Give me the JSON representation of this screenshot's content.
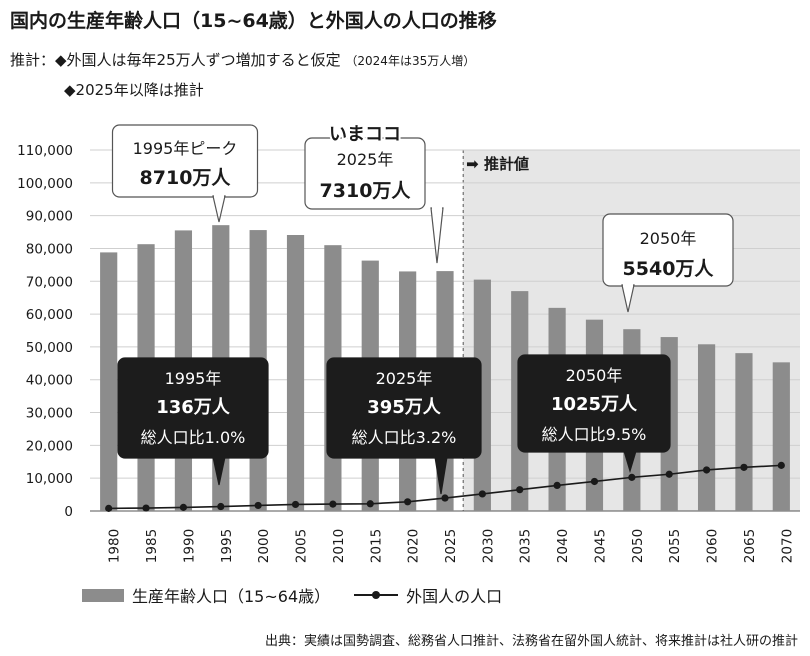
{
  "title": "国内の生産年齢人口（15~64歳）と外国人の人口の推移",
  "notes": {
    "line1_prefix": "推計：◆外国人は毎年25万人ずつ増加すると仮定",
    "line1_small": "（2024年は35万人増）",
    "line2": "◆2025年以降は推計"
  },
  "estimate_label": "推計値",
  "source": "出典：実績は国勢調査、総務省人口推計、法務省在留外国人統計、将来推計は社人研の推計",
  "legend": {
    "bar": "生産年齢人口（15~64歳）",
    "line": "外国人の人口"
  },
  "callouts": {
    "peak": {
      "line1": "1995年ピーク",
      "line2": "8710万人"
    },
    "now": {
      "header": "いまココ",
      "line1": "2025年",
      "line2": "7310万人"
    },
    "y2050": {
      "line1": "2050年",
      "line2": "5540万人"
    },
    "f1995": {
      "line1": "1995年",
      "line2": "136万人",
      "line3": "総人口比1.0%"
    },
    "f2025": {
      "line1": "2025年",
      "line2": "395万人",
      "line3": "総人口比3.2%"
    },
    "f2050": {
      "line1": "2050年",
      "line2": "1025万人",
      "line3": "総人口比9.5%"
    }
  },
  "colors": {
    "bar": "#8c8c8c",
    "estimate_bg": "#e6e6e6",
    "line": "#1a1a1a",
    "callout_dark": "#1c1c1c",
    "grid": "#cfcfcf"
  },
  "chart_data": {
    "type": "bar",
    "categories": [
      "1980",
      "1985",
      "1990",
      "1995",
      "2000",
      "2005",
      "2010",
      "2015",
      "2020",
      "2025",
      "2030",
      "2035",
      "2040",
      "2045",
      "2050",
      "2055",
      "2060",
      "2065",
      "2070"
    ],
    "series": [
      {
        "name": "生産年齢人口（15~64歳）",
        "type": "bar",
        "values": [
          78800,
          81300,
          85500,
          87100,
          85600,
          84100,
          81000,
          76300,
          73000,
          73100,
          70500,
          67000,
          61900,
          58300,
          55400,
          53000,
          50800,
          48100,
          45300
        ]
      },
      {
        "name": "外国人の人口",
        "type": "line",
        "values": [
          800,
          900,
          1100,
          1360,
          1700,
          2000,
          2100,
          2200,
          2800,
          3950,
          5200,
          6500,
          7800,
          9000,
          10250,
          11200,
          12500,
          13300,
          13900
        ]
      }
    ],
    "ylim": [
      0,
      110000
    ],
    "yticks": [
      "0",
      "10,000",
      "20,000",
      "30,000",
      "40,000",
      "50,000",
      "60,000",
      "70,000",
      "80,000",
      "90,000",
      "100,000",
      "110,000"
    ],
    "estimate_from": "2025",
    "grid": true,
    "legend_position": "bottom"
  }
}
